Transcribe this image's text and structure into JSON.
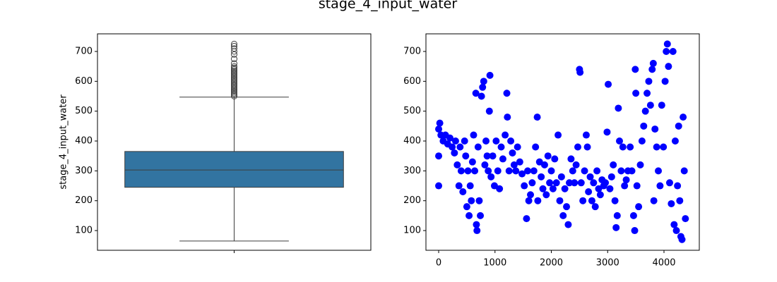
{
  "title": "stage_4_input_water",
  "chart_data": [
    {
      "type": "box",
      "ylabel": "stage_4_input_water",
      "categories": [
        null
      ],
      "color": "#3274a1",
      "stats": {
        "whislo": 65,
        "q1": 245,
        "med": 303,
        "q3": 365,
        "whishi": 547
      },
      "fliers": [
        550,
        555,
        560,
        565,
        570,
        575,
        580,
        585,
        590,
        595,
        600,
        605,
        610,
        615,
        620,
        625,
        630,
        635,
        640,
        645,
        650,
        660,
        675,
        690,
        700,
        710,
        718,
        725
      ],
      "ylim": [
        34,
        759
      ],
      "yticks": [
        100,
        200,
        300,
        400,
        500,
        600,
        700
      ]
    },
    {
      "type": "scatter",
      "color": "#0000ff",
      "x": [
        0,
        0,
        0,
        20,
        40,
        80,
        120,
        160,
        200,
        240,
        280,
        300,
        330,
        360,
        380,
        400,
        430,
        460,
        480,
        500,
        520,
        540,
        560,
        580,
        600,
        620,
        640,
        660,
        670,
        680,
        700,
        720,
        740,
        760,
        780,
        800,
        820,
        840,
        860,
        880,
        900,
        910,
        930,
        960,
        990,
        1020,
        1050,
        1080,
        1110,
        1140,
        1180,
        1210,
        1220,
        1250,
        1280,
        1310,
        1340,
        1370,
        1400,
        1440,
        1480,
        1520,
        1560,
        1580,
        1600,
        1630,
        1660,
        1690,
        1720,
        1750,
        1760,
        1790,
        1820,
        1850,
        1880,
        1910,
        1940,
        1970,
        2000,
        2030,
        2060,
        2090,
        2120,
        2150,
        2180,
        2210,
        2240,
        2270,
        2300,
        2320,
        2350,
        2380,
        2410,
        2440,
        2470,
        2500,
        2510,
        2530,
        2560,
        2590,
        2620,
        2640,
        2660,
        2690,
        2720,
        2750,
        2780,
        2810,
        2840,
        2870,
        2900,
        2930,
        2960,
        2990,
        3010,
        3040,
        3070,
        3100,
        3130,
        3150,
        3170,
        3190,
        3210,
        3240,
        3270,
        3300,
        3330,
        3360,
        3400,
        3430,
        3460,
        3480,
        3490,
        3500,
        3520,
        3550,
        3580,
        3610,
        3640,
        3670,
        3700,
        3730,
        3760,
        3790,
        3810,
        3820,
        3840,
        3870,
        3900,
        3930,
        3960,
        3990,
        4020,
        4040,
        4060,
        4080,
        4100,
        4130,
        4160,
        4180,
        4200,
        4220,
        4240,
        4260,
        4280,
        4300,
        4320,
        4340,
        4360,
        4380
      ],
      "y": [
        250,
        350,
        440,
        460,
        420,
        400,
        420,
        390,
        410,
        380,
        360,
        400,
        320,
        250,
        380,
        300,
        230,
        400,
        350,
        180,
        300,
        150,
        250,
        200,
        330,
        420,
        300,
        560,
        120,
        100,
        380,
        200,
        150,
        550,
        580,
        600,
        320,
        400,
        350,
        300,
        500,
        620,
        280,
        350,
        250,
        400,
        300,
        240,
        380,
        340,
        420,
        560,
        480,
        300,
        400,
        360,
        320,
        300,
        380,
        330,
        290,
        250,
        140,
        300,
        200,
        220,
        260,
        300,
        380,
        480,
        200,
        330,
        280,
        240,
        320,
        220,
        350,
        260,
        300,
        240,
        340,
        260,
        420,
        200,
        280,
        150,
        240,
        180,
        120,
        260,
        340,
        300,
        260,
        320,
        380,
        640,
        630,
        260,
        200,
        300,
        420,
        380,
        230,
        280,
        200,
        260,
        180,
        300,
        240,
        220,
        270,
        250,
        260,
        430,
        590,
        240,
        280,
        320,
        200,
        110,
        150,
        510,
        400,
        300,
        380,
        250,
        270,
        300,
        380,
        300,
        150,
        100,
        640,
        560,
        250,
        180,
        320,
        400,
        450,
        500,
        560,
        600,
        520,
        640,
        660,
        200,
        440,
        380,
        300,
        250,
        520,
        380,
        600,
        700,
        725,
        650,
        260,
        190,
        700,
        120,
        400,
        100,
        250,
        450,
        200,
        80,
        70,
        480,
        300,
        140
      ],
      "xlim": [
        -226,
        4627
      ],
      "xticks": [
        0,
        1000,
        2000,
        3000,
        4000
      ],
      "ylim": [
        34,
        759
      ],
      "yticks": [
        100,
        200,
        300,
        400,
        500,
        600,
        700
      ]
    }
  ]
}
